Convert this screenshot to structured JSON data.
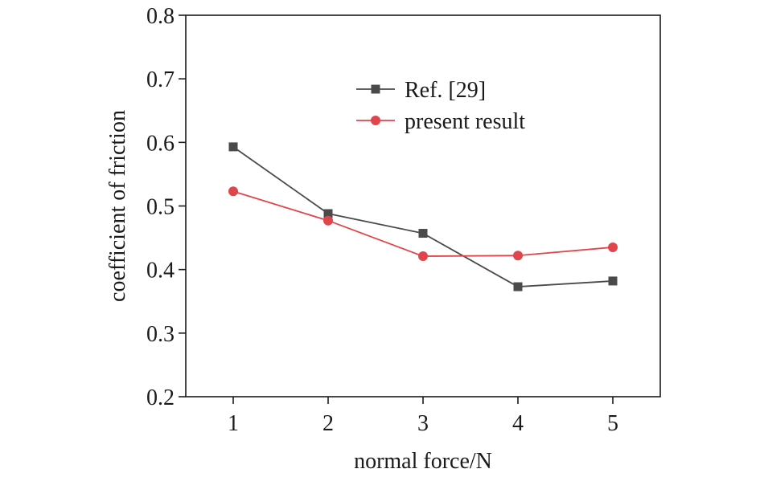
{
  "chart_data": {
    "type": "line",
    "title": "",
    "xlabel": "normal force/N",
    "ylabel": "coefficient of friction",
    "x": [
      1,
      2,
      3,
      4,
      5
    ],
    "xticks": [
      "1",
      "2",
      "3",
      "4",
      "5"
    ],
    "xlim": [
      0.5,
      5.5
    ],
    "ylim": [
      0.2,
      0.8
    ],
    "yticks": [
      "0.2",
      "0.3",
      "0.4",
      "0.5",
      "0.6",
      "0.7",
      "0.8"
    ],
    "grid": false,
    "legend_position": "top-center",
    "series": [
      {
        "name": "Ref. [29]",
        "values": [
          0.593,
          0.488,
          0.457,
          0.373,
          0.382
        ],
        "color": "#4a4a4a",
        "marker": "square"
      },
      {
        "name": "present result",
        "values": [
          0.523,
          0.477,
          0.421,
          0.422,
          0.435
        ],
        "color": "#e0454c",
        "marker": "circle"
      }
    ]
  }
}
